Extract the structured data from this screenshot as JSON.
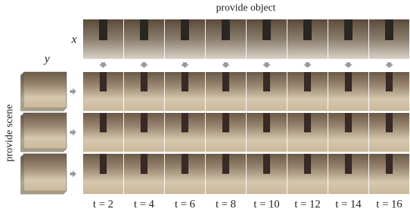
{
  "title": "provide object",
  "x_label": "x",
  "y_label": "y",
  "side_label": "provide scene",
  "time_labels": [
    "t = 2",
    "t = 4",
    "t = 6",
    "t = 8",
    "t = 10",
    "t = 12",
    "t = 14",
    "t = 16"
  ]
}
